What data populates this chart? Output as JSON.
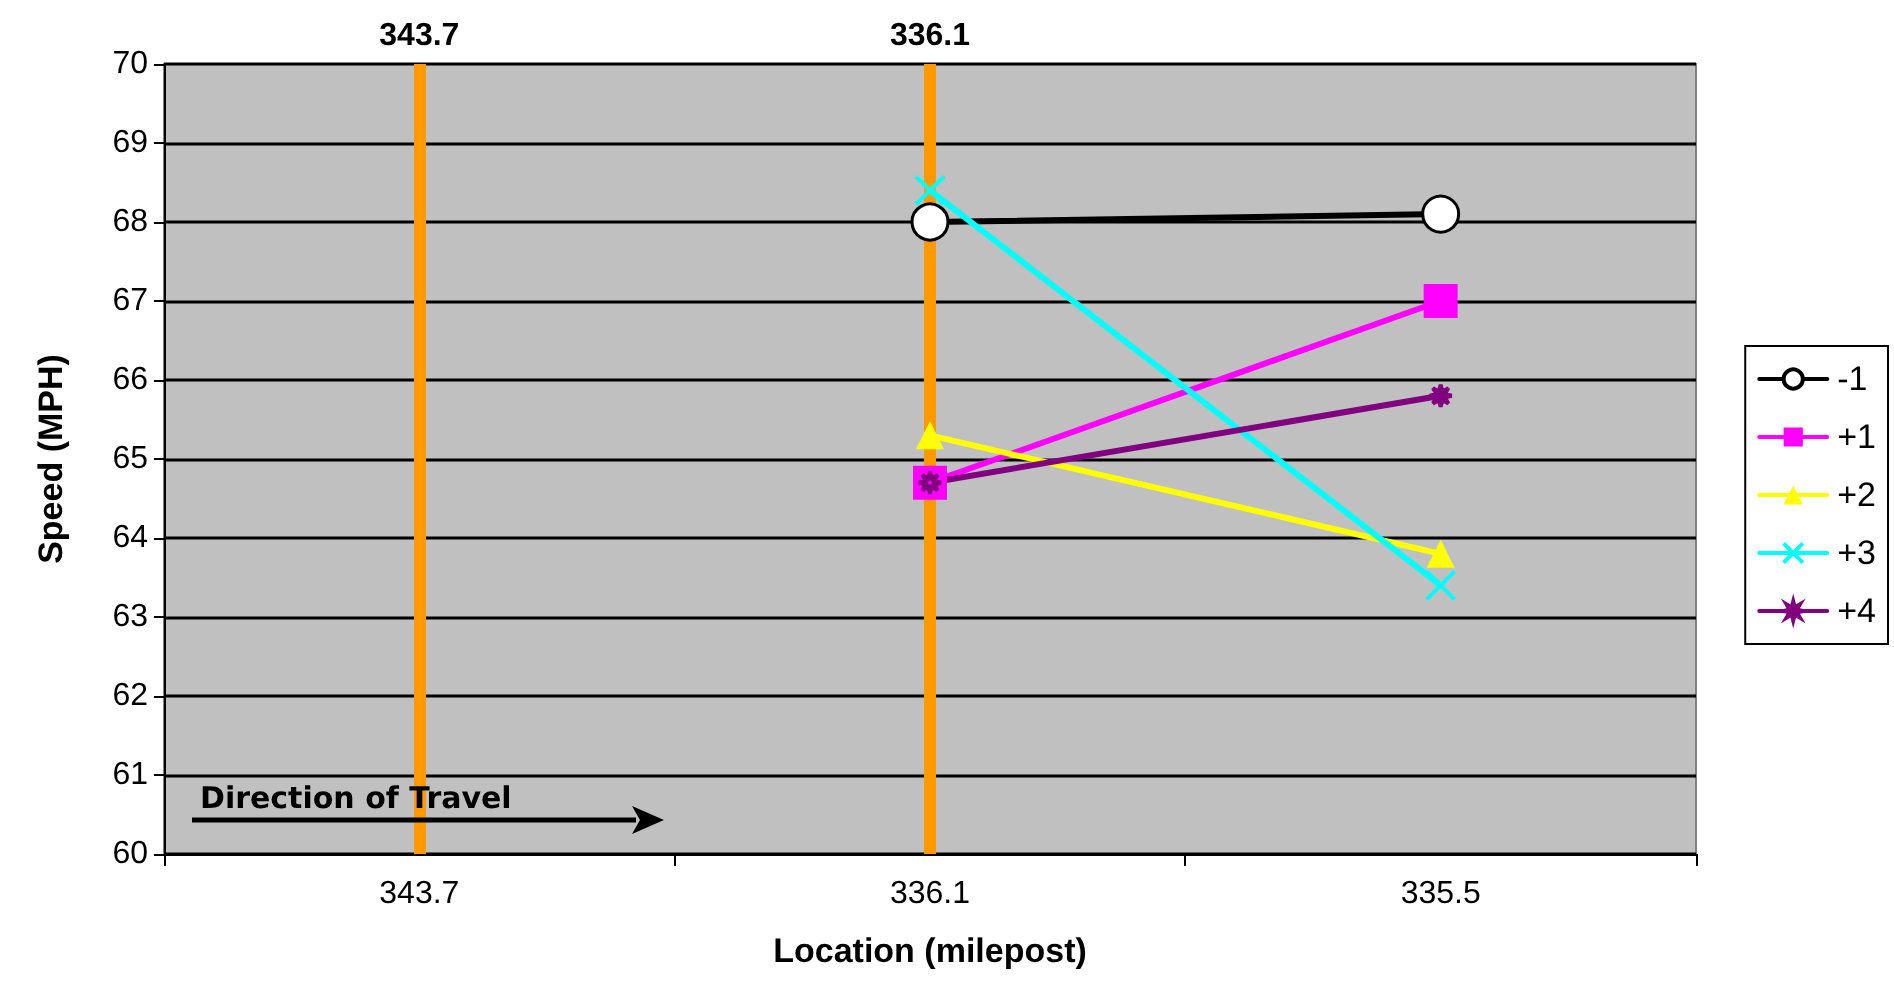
{
  "chart_data": {
    "type": "line",
    "xlabel": "Location (milepost)",
    "ylabel": "Speed (MPH)",
    "categories": [
      "343.7",
      "336.1",
      "335.5"
    ],
    "series": [
      {
        "name": "-1",
        "color": "#000000",
        "marker": "circle",
        "values": [
          null,
          68.0,
          68.1
        ]
      },
      {
        "name": "+1",
        "color": "#ff00ff",
        "marker": "square",
        "values": [
          null,
          64.7,
          67.0
        ]
      },
      {
        "name": "+2",
        "color": "#ffff00",
        "marker": "triangle",
        "values": [
          null,
          65.3,
          63.8
        ]
      },
      {
        "name": "+3",
        "color": "#00ffff",
        "marker": "cross",
        "values": [
          null,
          68.4,
          63.4
        ]
      },
      {
        "name": "+4",
        "color": "#800080",
        "marker": "star",
        "values": [
          null,
          64.7,
          65.8
        ]
      }
    ],
    "ylim": [
      60,
      70
    ],
    "yticks": [
      60,
      61,
      62,
      63,
      64,
      65,
      66,
      67,
      68,
      69,
      70
    ],
    "grid": "y",
    "legend": "right",
    "line_style": "solid",
    "ref_lines": [
      {
        "axis": "x",
        "value": "343.7",
        "label": "343.7",
        "color": "#ff9900"
      },
      {
        "axis": "x",
        "value": "336.1",
        "label": "336.1",
        "color": "#ff9900"
      }
    ],
    "annotations": [
      "Direction of Travel"
    ]
  }
}
